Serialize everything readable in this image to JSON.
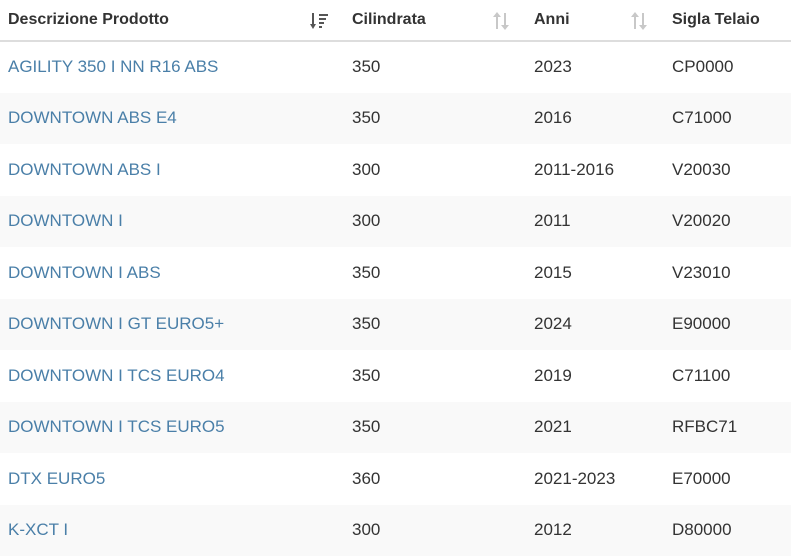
{
  "table": {
    "headers": [
      {
        "label": "Descrizione Prodotto",
        "sort": "desc-active"
      },
      {
        "label": "Cilindrata",
        "sort": "both"
      },
      {
        "label": "Anni",
        "sort": "both"
      },
      {
        "label": "Sigla Telaio",
        "sort": "none"
      }
    ],
    "rows": [
      {
        "descrizione": "AGILITY 350 I NN R16 ABS",
        "cilindrata": "350",
        "anni": "2023",
        "sigla": "CP0000"
      },
      {
        "descrizione": "DOWNTOWN ABS E4",
        "cilindrata": "350",
        "anni": "2016",
        "sigla": "C71000"
      },
      {
        "descrizione": "DOWNTOWN ABS I",
        "cilindrata": "300",
        "anni": "2011-2016",
        "sigla": "V20030"
      },
      {
        "descrizione": "DOWNTOWN I",
        "cilindrata": "300",
        "anni": "2011",
        "sigla": "V20020"
      },
      {
        "descrizione": "DOWNTOWN I ABS",
        "cilindrata": "350",
        "anni": "2015",
        "sigla": "V23010"
      },
      {
        "descrizione": "DOWNTOWN I GT EURO5+",
        "cilindrata": "350",
        "anni": "2024",
        "sigla": "E90000"
      },
      {
        "descrizione": "DOWNTOWN I TCS EURO4",
        "cilindrata": "350",
        "anni": "2019",
        "sigla": "C71100"
      },
      {
        "descrizione": "DOWNTOWN I TCS EURO5",
        "cilindrata": "350",
        "anni": "2021",
        "sigla": "RFBC71"
      },
      {
        "descrizione": "DTX EURO5",
        "cilindrata": "360",
        "anni": "2021-2023",
        "sigla": "E70000"
      },
      {
        "descrizione": "K-XCT I",
        "cilindrata": "300",
        "anni": "2012",
        "sigla": "D80000"
      }
    ]
  },
  "colors": {
    "link": "#4a7fa8",
    "text": "#333333",
    "stripe": "#f9f9f9",
    "sort_active": "#555555",
    "sort_inactive": "#c8c8c8"
  }
}
